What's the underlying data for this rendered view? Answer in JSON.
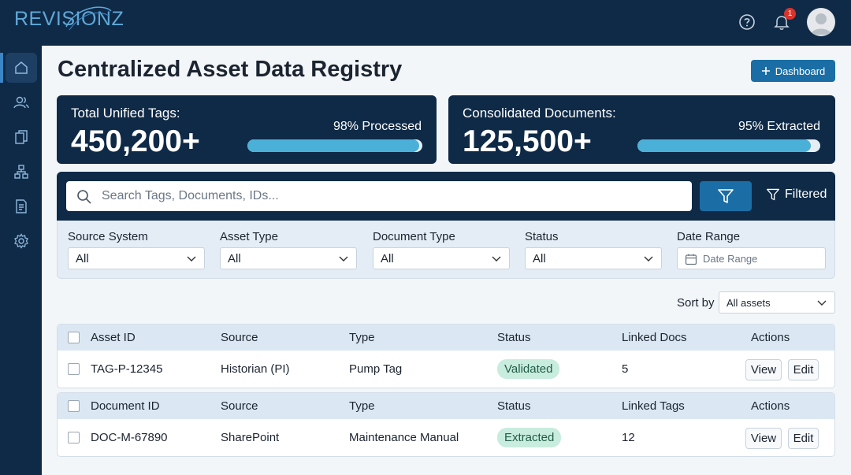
{
  "app": {
    "logo_text": "REVISIONZ",
    "notification_count": "1"
  },
  "page": {
    "title": "Centralized Asset Data Registry",
    "dashboard_button": "Dashboard"
  },
  "stats": [
    {
      "label": "Total Unified Tags:",
      "value": "450,200+",
      "progress_text": "98% Processed",
      "progress": 0.98
    },
    {
      "label": "Consolidated Documents:",
      "value": "125,500+",
      "progress_text": "95% Extracted",
      "progress": 0.95
    }
  ],
  "search": {
    "placeholder": "Search Tags, Documents, IDs...",
    "filtered_label": "Filtered"
  },
  "filters": [
    {
      "label": "Source System",
      "value": "All"
    },
    {
      "label": "Asset Type",
      "value": "All"
    },
    {
      "label": "Document Type",
      "value": "All"
    },
    {
      "label": "Status",
      "value": "All"
    },
    {
      "label": "Date Range",
      "value": "Date Range"
    }
  ],
  "sort": {
    "label": "Sort by",
    "value": "All assets"
  },
  "asset_table": {
    "headers": [
      "Asset ID",
      "Source",
      "Type",
      "Status",
      "Linked Docs",
      "Actions"
    ],
    "rows": [
      {
        "id": "TAG-P-12345",
        "source": "Historian (PI)",
        "type": "Pump Tag",
        "status": "Validated",
        "linked": "5",
        "view": "View",
        "edit": "Edit"
      }
    ]
  },
  "document_table": {
    "headers": [
      "Document ID",
      "Source",
      "Type",
      "Status",
      "Linked Tags",
      "Actions"
    ],
    "rows": [
      {
        "id": "DOC-M-67890",
        "source": "SharePoint",
        "type": "Maintenance Manual",
        "status": "Extracted",
        "linked": "12",
        "view": "View",
        "edit": "Edit"
      }
    ]
  },
  "sidebar": [
    "home-icon",
    "users-icon",
    "documents-icon",
    "hierarchy-icon",
    "report-icon",
    "settings-icon"
  ],
  "colors": {
    "navy": "#0f2a47",
    "accent": "#1a6ea5",
    "progress": "#4bb0d8",
    "status_pill": "#c8ecde"
  }
}
